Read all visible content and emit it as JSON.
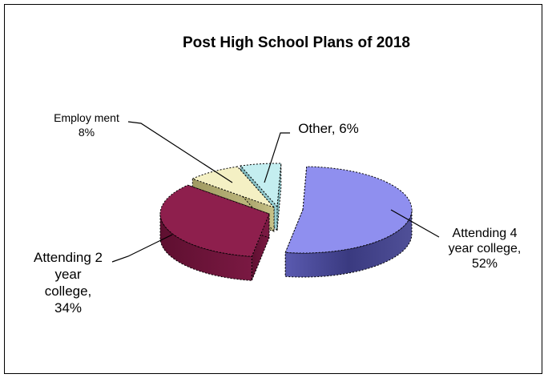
{
  "chart_data": {
    "type": "pie",
    "title": "Post High School Plans of 2018",
    "slices": [
      {
        "label": "Attending 4 year college",
        "value": 52,
        "color": "#8f8fef",
        "label_lines": [
          "Attending 4",
          "year college,",
          "52%"
        ]
      },
      {
        "label": "Attending 2 year college",
        "value": 34,
        "color": "#8e1f4d",
        "label_lines": [
          "Attending 2",
          "year",
          "college,",
          "34%"
        ]
      },
      {
        "label": "Employment",
        "value": 8,
        "color": "#f4f0c4",
        "label_lines": [
          "Employ ment",
          "8%"
        ]
      },
      {
        "label": "Other",
        "value": 6,
        "color": "#c4eef0",
        "label_lines": [
          "Other, 6%"
        ]
      }
    ],
    "exploded": true,
    "three_d": true,
    "legend": "none"
  }
}
